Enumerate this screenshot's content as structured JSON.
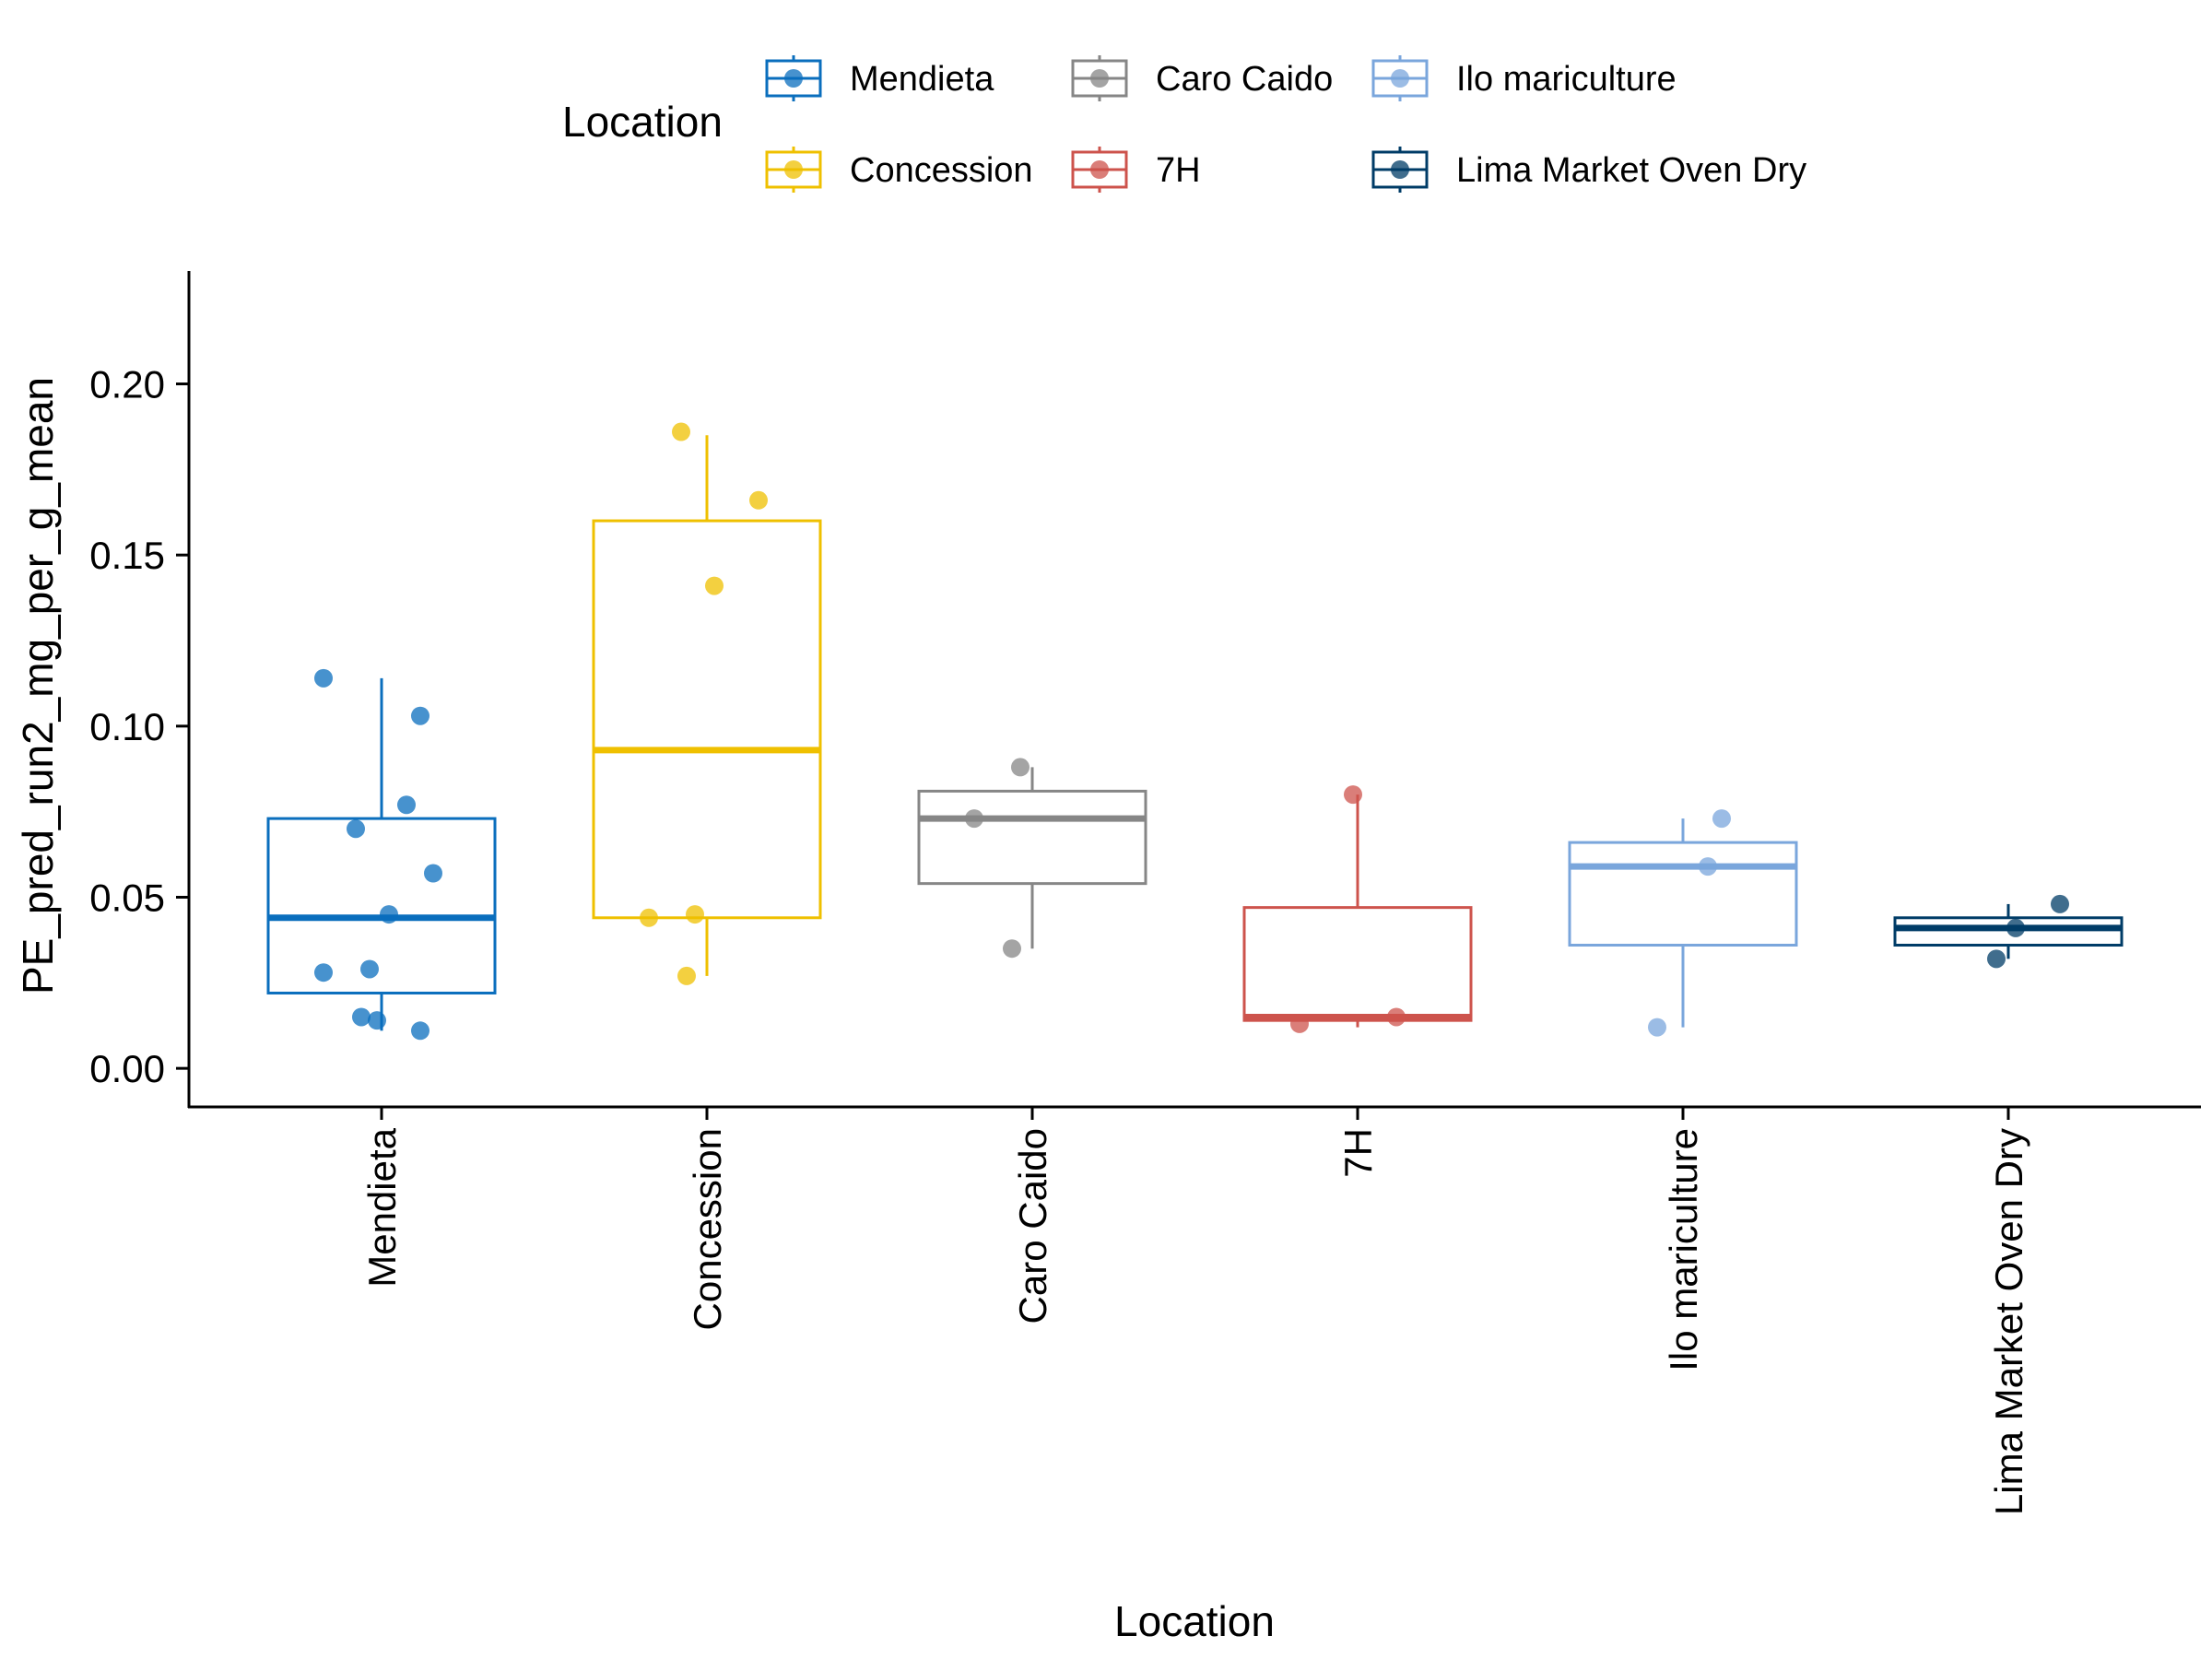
{
  "chart_data": {
    "type": "boxplot",
    "title": "",
    "xlabel": "Location",
    "ylabel": "PE_pred_run2_mg_per_g_mean",
    "ylim": [
      -0.011,
      0.233
    ],
    "yticks": [
      "0.00",
      "0.05",
      "0.10",
      "0.15",
      "0.20"
    ],
    "ytick_values": [
      0.0,
      0.05,
      0.1,
      0.15,
      0.2
    ],
    "grid": false,
    "legend": {
      "title": "Location",
      "placement": "top"
    },
    "categories": [
      "Mendieta",
      "Concession",
      "Caro Caido",
      "7H",
      "Ilo mariculture",
      "Lima Market Oven Dry"
    ],
    "series": [
      {
        "name": "Mendieta",
        "color": "#0A6EBD",
        "box": {
          "min": 0.011,
          "q1": 0.022,
          "median": 0.044,
          "q3": 0.073,
          "max": 0.114
        },
        "points": [
          0.114,
          0.103,
          0.077,
          0.07,
          0.057,
          0.045,
          0.029,
          0.028,
          0.015,
          0.014,
          0.011
        ]
      },
      {
        "name": "Concession",
        "color": "#EFC000",
        "box": {
          "min": 0.027,
          "q1": 0.044,
          "median": 0.093,
          "q3": 0.16,
          "max": 0.185
        },
        "points": [
          0.186,
          0.166,
          0.141,
          0.045,
          0.044,
          0.027
        ]
      },
      {
        "name": "Caro Caido",
        "color": "#868686",
        "box": {
          "min": 0.035,
          "q1": 0.054,
          "median": 0.073,
          "q3": 0.081,
          "max": 0.088
        },
        "points": [
          0.088,
          0.073,
          0.035
        ]
      },
      {
        "name": "7H",
        "color": "#CD534C",
        "box": {
          "min": 0.012,
          "q1": 0.014,
          "median": 0.015,
          "q3": 0.047,
          "max": 0.08
        },
        "points": [
          0.08,
          0.015,
          0.013
        ]
      },
      {
        "name": "Ilo mariculture",
        "color": "#7AA6DC",
        "box": {
          "min": 0.012,
          "q1": 0.036,
          "median": 0.059,
          "q3": 0.066,
          "max": 0.073
        },
        "points": [
          0.073,
          0.059,
          0.012
        ]
      },
      {
        "name": "Lima Market Oven Dry",
        "color": "#003C67",
        "box": {
          "min": 0.032,
          "q1": 0.036,
          "median": 0.041,
          "q3": 0.044,
          "max": 0.048
        },
        "points": [
          0.048,
          0.041,
          0.032
        ]
      }
    ]
  }
}
